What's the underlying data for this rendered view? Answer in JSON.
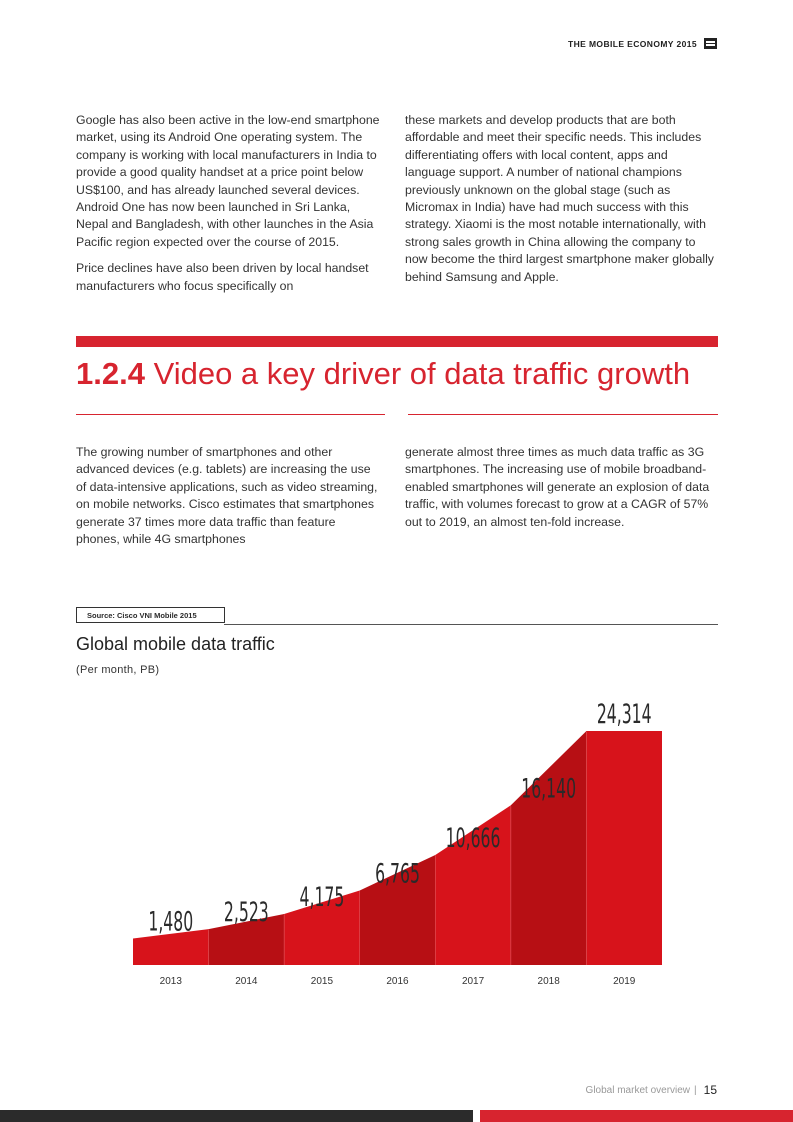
{
  "header": {
    "title": "THE MOBILE ECONOMY 2015",
    "logo_icon": "gsma-logo-icon"
  },
  "intro": {
    "left_paragraphs": [
      "Google has also been active in the low-end smartphone market, using its Android One operating system. The company is working with local manufacturers in India to provide a good quality handset at a price point below US$100, and has already launched several devices. Android One has now been launched in Sri Lanka, Nepal and Bangladesh, with other launches in the Asia Pacific region expected over the course of 2015.",
      "Price declines have also been driven by local handset manufacturers who focus specifically on"
    ],
    "right_paragraphs": [
      "these markets and develop products that are both affordable and meet their specific needs. This includes differentiating offers with local content, apps and language support. A number of national champions previously unknown on the global stage (such as Micromax in India) have had much success with this strategy. Xiaomi is the most notable internationally, with strong sales growth in China allowing the company to now become the third largest smartphone maker globally behind Samsung and Apple."
    ]
  },
  "section": {
    "number": "1.2.4",
    "title": "Video a key driver of data traffic growth",
    "left_paragraph": "The growing number of smartphones and other advanced devices (e.g. tablets) are increasing the use of data-intensive applications, such as video streaming, on mobile networks. Cisco estimates that smartphones generate 37 times more data traffic than feature phones, while 4G smartphones",
    "right_paragraph": "generate almost three times as much data traffic as 3G smartphones. The increasing use of mobile broadband-enabled smartphones will generate an explosion of data traffic, with volumes forecast to grow at a CAGR of 57% out to 2019, an almost ten-fold increase."
  },
  "figure": {
    "source": "Source: Cisco VNI Mobile 2015",
    "title": "Global mobile data traffic",
    "subtitle": "(Per month, PB)"
  },
  "chart_data": {
    "type": "area",
    "title": "Global mobile data traffic",
    "subtitle": "(Per month, PB)",
    "categories": [
      "2013",
      "2014",
      "2015",
      "2016",
      "2017",
      "2018",
      "2019"
    ],
    "values": [
      1480,
      2523,
      4175,
      6765,
      10666,
      16140,
      24314
    ],
    "labels": [
      "1,480",
      "2,523",
      "4,175",
      "6,765",
      "10,666",
      "16,140",
      "24,314"
    ],
    "ylim": [
      0,
      24314
    ],
    "colors": [
      "#d7131b",
      "#b70f14"
    ],
    "grid": false,
    "legend": "none"
  },
  "footer": {
    "section_label": "Global market overview",
    "separator": "|",
    "page_number": "15"
  }
}
